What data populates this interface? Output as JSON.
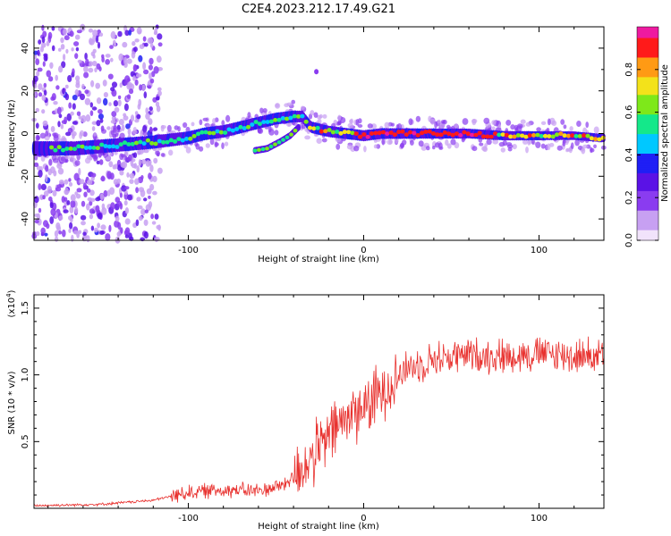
{
  "title": "C2E4.2023.212.17.49.G21",
  "colors": {
    "snr_line": "#e8312e",
    "colormap": [
      "#f1e3fb",
      "#c7a0f2",
      "#8a3cf0",
      "#5a12e6",
      "#1f1ff5",
      "#00c8ff",
      "#14e88a",
      "#7ee81a",
      "#f3e21a",
      "#ff9a14",
      "#ff1a1a",
      "#ee1aa0"
    ]
  },
  "chart_data": [
    {
      "type": "heatmap",
      "name": "spectrogram",
      "xlabel": "Height of straight line (km)",
      "ylabel": "Frequency (Hz)",
      "xlim": [
        -188,
        137
      ],
      "ylim": [
        -50,
        50
      ],
      "xticks": [
        -100,
        0,
        100
      ],
      "yticks": [
        -40,
        -20,
        0,
        20,
        40
      ],
      "colorbar": {
        "label": "Normalized spectral amplitude",
        "range": [
          0,
          1
        ],
        "ticks": [
          "0.0",
          "0.2",
          "0.4",
          "0.6",
          "0.8"
        ]
      },
      "ridge": [
        [
          -180,
          -7
        ],
        [
          -165,
          -7
        ],
        [
          -150,
          -6
        ],
        [
          -135,
          -5
        ],
        [
          -120,
          -4
        ],
        [
          -110,
          -3
        ],
        [
          -100,
          -2
        ],
        [
          -90,
          0
        ],
        [
          -80,
          1
        ],
        [
          -70,
          3
        ],
        [
          -60,
          5
        ],
        [
          -50,
          7
        ],
        [
          -40,
          8
        ],
        [
          -35,
          8
        ],
        [
          -30,
          3
        ],
        [
          -20,
          1
        ],
        [
          -10,
          0
        ],
        [
          0,
          -1
        ],
        [
          10,
          0
        ],
        [
          20,
          0
        ],
        [
          40,
          0
        ],
        [
          60,
          0
        ],
        [
          80,
          -1
        ],
        [
          100,
          -1
        ],
        [
          120,
          -1
        ],
        [
          135,
          -2
        ]
      ],
      "branch": [
        [
          -62,
          -8
        ],
        [
          -55,
          -7
        ],
        [
          -48,
          -4
        ],
        [
          -42,
          -1
        ],
        [
          -37,
          3
        ]
      ],
      "spot": [
        -27,
        29
      ]
    },
    {
      "type": "line",
      "name": "snr",
      "xlabel": "Height of straight line (km)",
      "ylabel": "SNR (10 * v/v)",
      "y_exponent": "(x10",
      "y_exponent_power": "4",
      "xlim": [
        -188,
        137
      ],
      "ylim": [
        0,
        1.6
      ],
      "xticks": [
        -100,
        0,
        100
      ],
      "yticks": [
        "0.5",
        "1.0",
        "1.5"
      ],
      "envelope": [
        [
          -188,
          0.02
        ],
        [
          -150,
          0.03
        ],
        [
          -120,
          0.06
        ],
        [
          -100,
          0.12
        ],
        [
          -80,
          0.14
        ],
        [
          -60,
          0.13
        ],
        [
          -45,
          0.18
        ],
        [
          -35,
          0.3
        ],
        [
          -25,
          0.45
        ],
        [
          -15,
          0.62
        ],
        [
          -5,
          0.72
        ],
        [
          5,
          0.8
        ],
        [
          15,
          0.95
        ],
        [
          25,
          1.05
        ],
        [
          40,
          1.12
        ],
        [
          60,
          1.15
        ],
        [
          80,
          1.14
        ],
        [
          100,
          1.16
        ],
        [
          120,
          1.14
        ],
        [
          137,
          1.15
        ]
      ]
    }
  ]
}
